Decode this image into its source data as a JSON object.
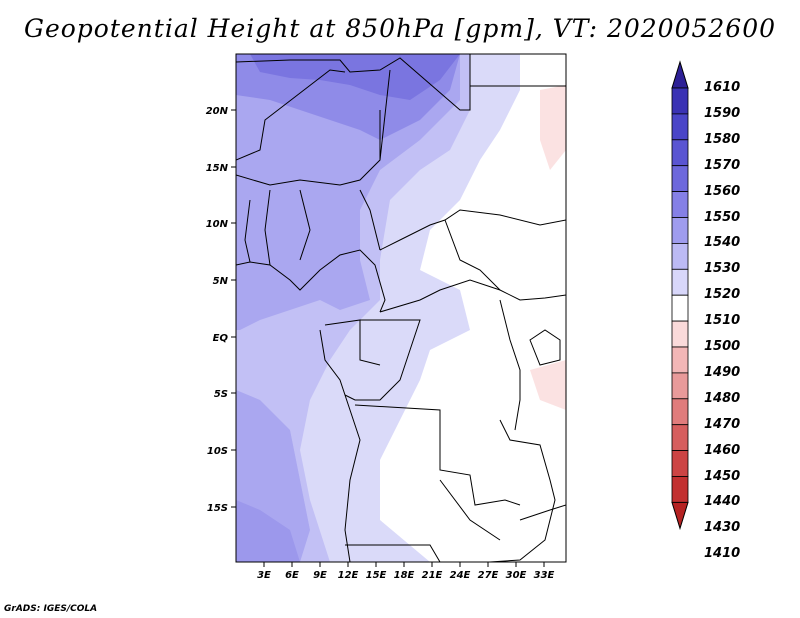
{
  "title": "Geopotential Height at 850hPa [gpm], VT: 2020052600",
  "credit": "GrADS: IGES/COLA",
  "lat_ticks": [
    "20N",
    "15N",
    "10N",
    "5N",
    "EQ",
    "5S",
    "10S",
    "15S"
  ],
  "lon_ticks": [
    "3E",
    "6E",
    "9E",
    "12E",
    "15E",
    "18E",
    "21E",
    "24E",
    "27E",
    "30E",
    "33E"
  ],
  "colorbar": {
    "levels": [
      "1610",
      "1590",
      "1580",
      "1570",
      "1560",
      "1550",
      "1540",
      "1530",
      "1520",
      "1510",
      "1500",
      "1490",
      "1480",
      "1470",
      "1460",
      "1450",
      "1440",
      "1430",
      "1410"
    ],
    "colors": [
      "#2d2096",
      "#3a32b4",
      "#4a45c8",
      "#5a55d2",
      "#6d68dc",
      "#8580e6",
      "#9f9cee",
      "#bcbaf4",
      "#d8d7fa",
      "#ffffff",
      "#fadada",
      "#f2b6b6",
      "#e89a9a",
      "#e07c7c",
      "#d65e5e",
      "#cc4444",
      "#c23030",
      "#b52222"
    ]
  }
}
